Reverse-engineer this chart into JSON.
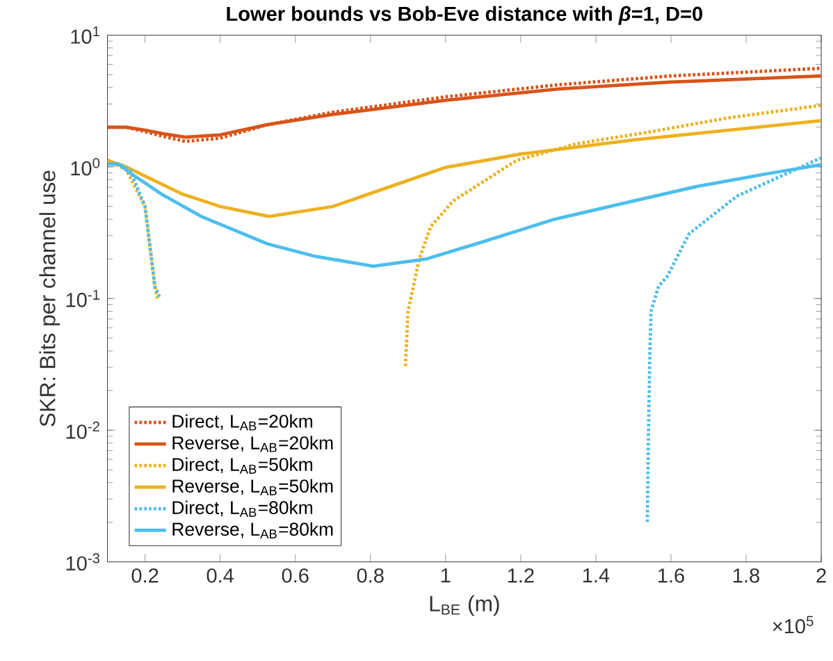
{
  "chart_data": {
    "type": "line",
    "title": "Lower bounds vs Bob-Eve distance with *β*=1, D=0",
    "xlabel": "L$_{BE}$ (m)",
    "ylabel": "SKR: Bits per channel use",
    "annotations": [
      "×10$^{5}$"
    ],
    "log": "y",
    "legend": "bottom left",
    "xlim": [
      0.1,
      2
    ],
    "ylim": [
      0.001,
      10
    ],
    "xticks": [
      0.2,
      0.4,
      0.6,
      0.8,
      1,
      1.2,
      1.4,
      1.6,
      1.8,
      2
    ],
    "yticks": [
      {
        "value": 0.001,
        "label": "10$^{-3}$"
      },
      {
        "value": 0.01,
        "label": "10$^{-2}$"
      },
      {
        "value": 0.1,
        "label": "10$^{-1}$"
      },
      {
        "value": 1,
        "label": "10$^{0}$"
      },
      {
        "value": 10,
        "label": "10$^{1}$"
      }
    ],
    "series": [
      {
        "name": "Direct, L$_{AB}$=20km",
        "color": "#d95319",
        "line_style": "dotted",
        "x": [
          0.1,
          0.15,
          0.2,
          0.25,
          0.307,
          0.4,
          0.526,
          0.7,
          1.0,
          1.3,
          1.6,
          2.0
        ],
        "values": [
          2.0,
          2.0,
          1.85,
          1.7,
          1.56,
          1.65,
          2.09,
          2.6,
          3.4,
          4.2,
          4.9,
          5.6
        ]
      },
      {
        "name": "Reverse, L$_{AB}$=20km",
        "color": "#d95319",
        "line_style": "solid",
        "x": [
          0.1,
          0.15,
          0.2,
          0.25,
          0.307,
          0.4,
          0.526,
          0.7,
          1.0,
          1.3,
          1.6,
          2.0
        ],
        "values": [
          2.0,
          2.0,
          1.9,
          1.78,
          1.68,
          1.75,
          2.09,
          2.5,
          3.2,
          3.9,
          4.4,
          4.9
        ]
      },
      {
        "name": "Direct, L$_{AB}$=50km",
        "color": "#edb120",
        "line_style": "dotted",
        "x": [
          0.1,
          0.15,
          0.2,
          0.226,
          0.233,
          0.5,
          0.893,
          0.9,
          0.93,
          0.96,
          1.02,
          1.189,
          1.35,
          1.548,
          1.75,
          2.0
        ],
        "values": [
          1.12,
          0.95,
          0.5,
          0.124,
          0.1,
          null,
          0.0307,
          0.08,
          0.2,
          0.35,
          0.55,
          1.12,
          1.5,
          1.85,
          2.35,
          2.93
        ]
      },
      {
        "name": "Reverse, L$_{AB}$=50km",
        "color": "#edb120",
        "line_style": "solid",
        "x": [
          0.1,
          0.15,
          0.2,
          0.3,
          0.4,
          0.53,
          0.7,
          1.0,
          1.2,
          1.5,
          2.0
        ],
        "values": [
          1.12,
          1.0,
          0.85,
          0.62,
          0.5,
          0.42,
          0.5,
          0.99,
          1.25,
          1.6,
          2.24
        ]
      },
      {
        "name": "Direct, L$_{AB}$=80km",
        "color": "#4dbeee",
        "line_style": "dotted",
        "x": [
          0.1,
          0.13,
          0.16,
          0.2,
          0.226,
          0.24,
          0.8,
          1.537,
          1.54,
          1.544,
          1.547,
          1.567,
          1.59,
          1.648,
          1.776,
          2.0
        ],
        "values": [
          1.05,
          1.05,
          0.95,
          0.5,
          0.124,
          0.1,
          null,
          0.00201,
          0.0094,
          0.04,
          0.08,
          0.124,
          0.147,
          0.31,
          0.6,
          1.17
        ]
      },
      {
        "name": "Reverse, L$_{AB}$=80km",
        "color": "#4dbeee",
        "line_style": "solid",
        "x": [
          0.1,
          0.13,
          0.16,
          0.244,
          0.35,
          0.526,
          0.65,
          0.807,
          0.95,
          1.1,
          1.29,
          1.5,
          1.67,
          1.85,
          2.0
        ],
        "values": [
          1.05,
          1.05,
          0.9,
          0.62,
          0.42,
          0.26,
          0.21,
          0.176,
          0.2,
          0.27,
          0.4,
          0.55,
          0.71,
          0.88,
          1.04
        ]
      }
    ]
  }
}
